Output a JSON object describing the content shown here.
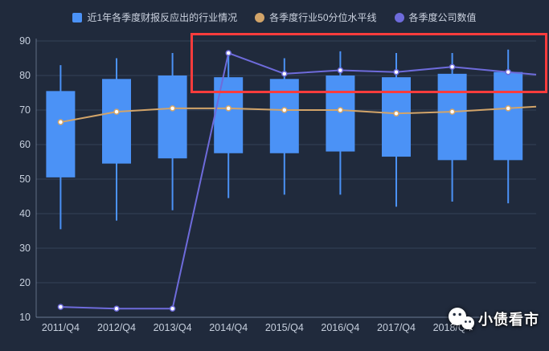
{
  "legend": {
    "items": [
      {
        "label": "近1年各季度财报反应出的行业情况",
        "marker": "square",
        "color": "#4b92f6"
      },
      {
        "label": "各季度行业50分位水平线",
        "marker": "circle",
        "color": "#d2a469"
      },
      {
        "label": "各季度公司数值",
        "marker": "circle",
        "color": "#6e6bdb"
      }
    ]
  },
  "chart_data": {
    "type": "candlestick+line",
    "categories": [
      "2011/Q4",
      "2012/Q4",
      "2013/Q4",
      "2014/Q4",
      "2015/Q4",
      "2016/Q4",
      "2017/Q4",
      "2018/Q4",
      ""
    ],
    "series": [
      {
        "name": "近1年各季度财报反应出的行业情况",
        "type": "candlestick",
        "color": "#4b92f6",
        "values": [
          [
            35.5,
            50.5,
            75.5,
            83
          ],
          [
            38,
            54.5,
            79,
            85
          ],
          [
            41,
            56,
            80,
            86.5
          ],
          [
            44.5,
            57.5,
            79.5,
            86.5
          ],
          [
            45.5,
            57.5,
            79,
            85
          ],
          [
            45.5,
            58,
            80,
            87
          ],
          [
            42,
            56.5,
            79.5,
            86.5
          ],
          [
            43.5,
            55.5,
            80.5,
            86.5
          ],
          [
            43,
            55.5,
            81,
            87.5
          ]
        ]
      },
      {
        "name": "各季度行业50分位水平线",
        "type": "line",
        "color": "#d2a469",
        "values": [
          66.5,
          69.5,
          70.5,
          70.5,
          70,
          70,
          69,
          69.5,
          70.5
        ]
      },
      {
        "name": "各季度公司数值",
        "type": "line",
        "color": "#6e6bdb",
        "values": [
          13,
          12.5,
          12.5,
          86.5,
          80.5,
          81.5,
          81,
          82.5,
          81
        ]
      }
    ],
    "ylim": [
      10,
      90
    ],
    "yticks": [
      90,
      80,
      70,
      60,
      50,
      40,
      30,
      20,
      10
    ],
    "grid": true,
    "legend_position": "top",
    "annotation": {
      "type": "rect",
      "color": "#fb3c3c",
      "note": "red highlight box over company-value line from 2014/Q4 to latest quarter"
    }
  },
  "watermark": {
    "text": "小债看市",
    "icon": "wechat-icon"
  },
  "colors": {
    "background": "#202a3c",
    "axis_text": "#c6cfdd",
    "grid_line": "rgba(125,148,185,0.22)",
    "axis_line": "rgba(160,178,205,0.5)"
  }
}
